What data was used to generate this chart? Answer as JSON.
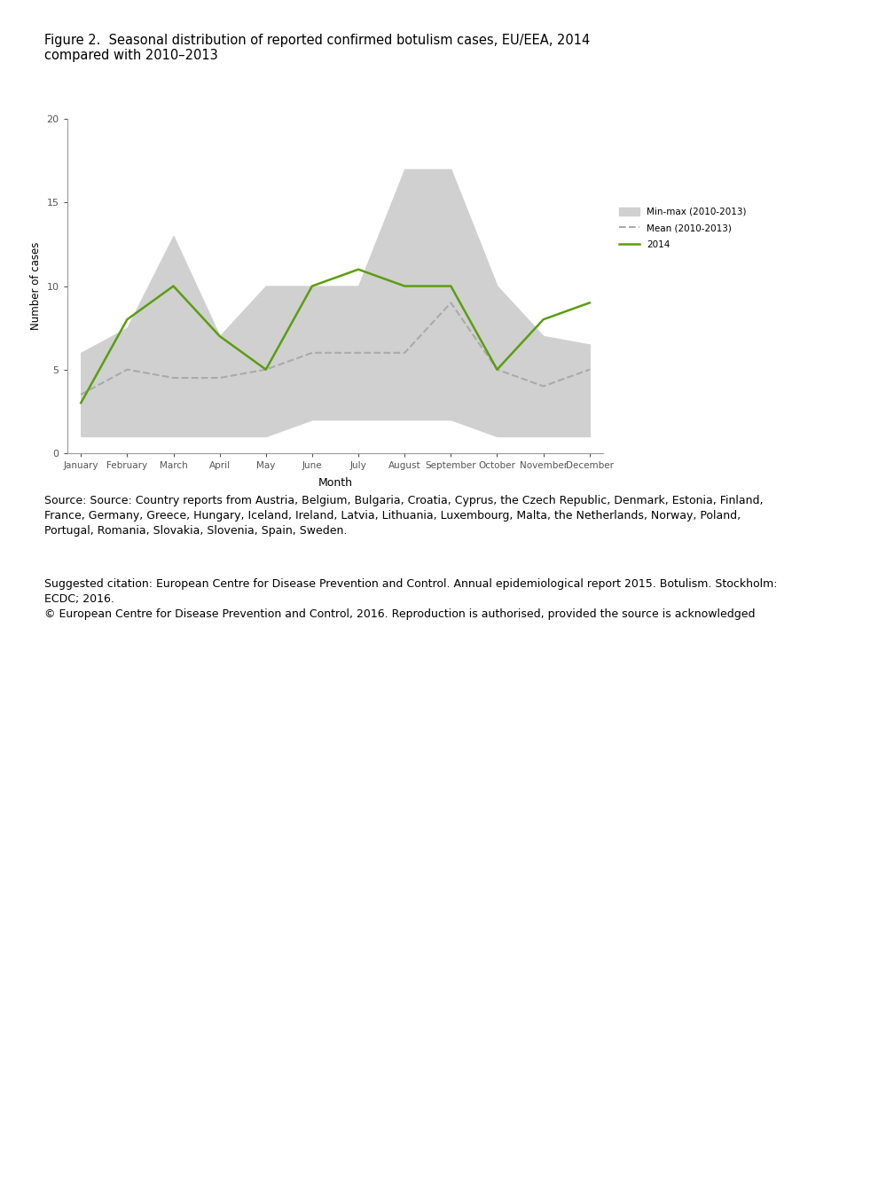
{
  "title": "Figure 2.  Seasonal distribution of reported confirmed botulism cases, EU/EEA, 2014\ncompared with 2010–2013",
  "months": [
    "January",
    "February",
    "March",
    "April",
    "May",
    "June",
    "July",
    "August",
    "September",
    "October",
    "November",
    "December"
  ],
  "line_2014": [
    3,
    8,
    10,
    7,
    5,
    10,
    11,
    10,
    10,
    5,
    8,
    9
  ],
  "mean_2010_2013": [
    3.5,
    5,
    4.5,
    4.5,
    5,
    6,
    6,
    6,
    9,
    5,
    4,
    5
  ],
  "min_2010_2013": [
    1,
    1,
    1,
    1,
    1,
    2,
    2,
    2,
    2,
    1,
    1,
    1
  ],
  "max_2010_2013": [
    6,
    7.5,
    13,
    7,
    10,
    10,
    10,
    17,
    17,
    10,
    7,
    6.5
  ],
  "ylabel": "Number of cases",
  "xlabel": "Month",
  "ylim": [
    0,
    20
  ],
  "yticks": [
    0,
    5,
    10,
    15,
    20
  ],
  "line_2014_color": "#5a9e0f",
  "mean_color": "#aaaaaa",
  "fill_color": "#d0d0d0",
  "source_text": "Source: Source: Country reports from Austria, Belgium, Bulgaria, Croatia, Cyprus, the Czech Republic, Denmark, Estonia, Finland,\nFrance, Germany, Greece, Hungary, Iceland, Ireland, Latvia, Lithuania, Luxembourg, Malta, the Netherlands, Norway, Poland,\nPortugal, Romania, Slovakia, Slovenia, Spain, Sweden.",
  "citation_text": "Suggested citation: European Centre for Disease Prevention and Control. Annual epidemiological report 2015. Botulism. Stockholm:\nECDC; 2016.\n© European Centre for Disease Prevention and Control, 2016. Reproduction is authorised, provided the source is acknowledged"
}
